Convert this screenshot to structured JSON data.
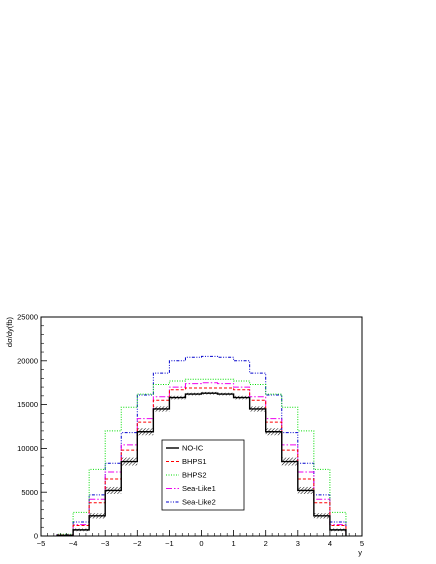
{
  "chart_data": {
    "type": "line",
    "style": "step-histogram",
    "xlabel": "y",
    "ylabel": "dσ/dy(fb)",
    "xlim": [
      -5,
      5
    ],
    "ylim": [
      0,
      25000
    ],
    "x_ticks": [
      -5,
      -4,
      -3,
      -2,
      -1,
      0,
      1,
      2,
      3,
      4,
      5
    ],
    "y_ticks": [
      0,
      5000,
      10000,
      15000,
      20000,
      25000
    ],
    "x_tick_labels": [
      "−5",
      "−4",
      "−3",
      "−2",
      "−1",
      "0",
      "1",
      "2",
      "3",
      "4",
      "5"
    ],
    "y_tick_labels": [
      "0",
      "5000",
      "10000",
      "15000",
      "20000",
      "25000"
    ],
    "bin_edges": [
      -4.5,
      -4.0,
      -3.5,
      -3.0,
      -2.5,
      -2.0,
      -1.5,
      -1.0,
      -0.5,
      0.0,
      0.5,
      1.0,
      1.5,
      2.0,
      2.5,
      3.0,
      3.5,
      4.0,
      4.5
    ],
    "legend_position": "center-lower",
    "series": [
      {
        "name": "NO-IC",
        "color": "#000000",
        "dash": "",
        "width": 1.4,
        "values": [
          60,
          700,
          2300,
          5200,
          8500,
          11900,
          14500,
          15800,
          16200,
          16300,
          16200,
          15800,
          14500,
          11900,
          8500,
          5200,
          2300,
          700,
          60
        ],
        "band": [
          60,
          300,
          600,
          800,
          900,
          800,
          600,
          400,
          300,
          300,
          300,
          400,
          600,
          800,
          900,
          800,
          600,
          300,
          60
        ]
      },
      {
        "name": "BHPS1",
        "color": "#ff0000",
        "dash": "3,2",
        "width": 1,
        "values": [
          100,
          1200,
          3800,
          6500,
          9800,
          13000,
          15500,
          16700,
          16900,
          16900,
          16900,
          16700,
          15500,
          13000,
          9800,
          6500,
          3800,
          1200,
          100
        ]
      },
      {
        "name": "BHPS2",
        "color": "#00dd00",
        "dash": "1,1.5",
        "width": 1,
        "values": [
          200,
          2700,
          7600,
          12000,
          14700,
          16200,
          17300,
          17700,
          17900,
          17900,
          17900,
          17700,
          17300,
          16200,
          14700,
          12000,
          7600,
          2700,
          200
        ]
      },
      {
        "name": "Sea-Like1",
        "color": "#ee00ee",
        "dash": "6,2,1.5,2",
        "width": 1,
        "values": [
          100,
          1300,
          4200,
          7300,
          10400,
          13400,
          15900,
          17000,
          17400,
          17500,
          17400,
          17000,
          15900,
          13400,
          10400,
          7300,
          4200,
          1300,
          100
        ]
      },
      {
        "name": "Sea-Like2",
        "color": "#0000cc",
        "dash": "3,1.5,1,1.5,1,1.5",
        "width": 1,
        "values": [
          150,
          1600,
          4700,
          8300,
          11800,
          16100,
          18600,
          20000,
          20400,
          20500,
          20400,
          20000,
          18600,
          16100,
          11800,
          8300,
          4700,
          1600,
          150
        ]
      }
    ]
  }
}
